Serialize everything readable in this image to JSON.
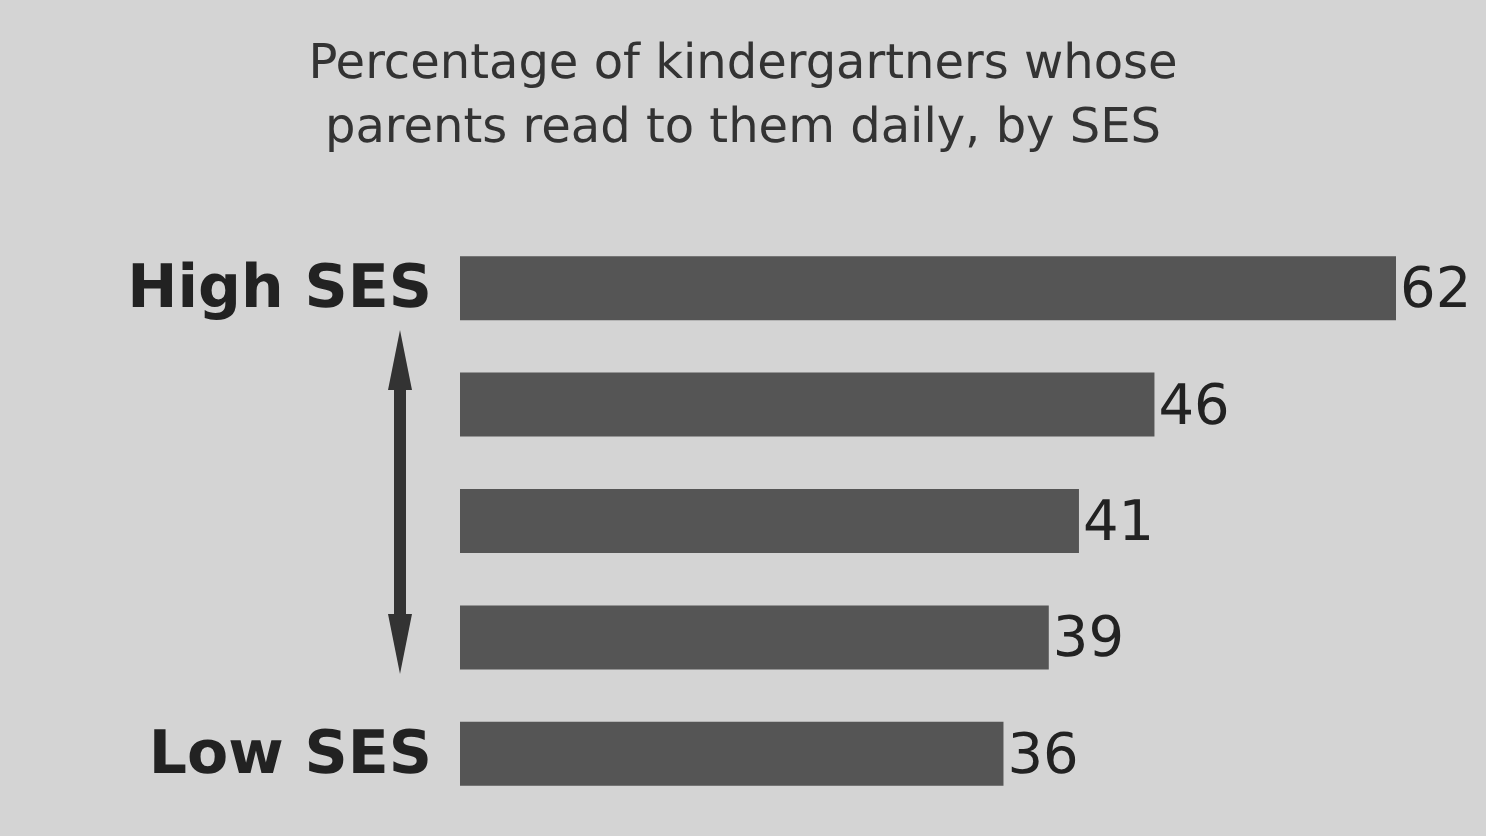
{
  "chart_data": {
    "type": "bar",
    "orientation": "horizontal",
    "title": "Percentage of kindergartners whose\nparents read to them daily, by SES",
    "categories": [
      "High SES",
      null,
      null,
      null,
      "Low SES"
    ],
    "values": [
      62,
      46,
      41,
      39,
      36
    ],
    "color": "#555555",
    "data_labels": true
  }
}
